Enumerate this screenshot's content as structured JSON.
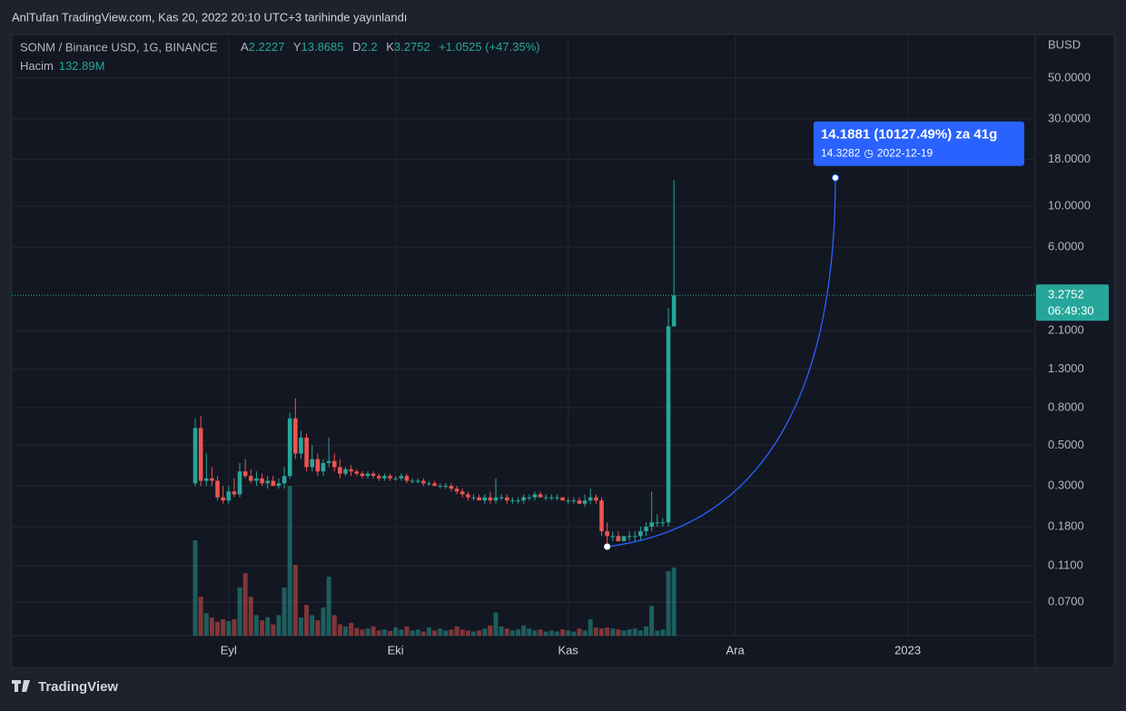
{
  "header": {
    "title": "AnlTufan TradingView.com, Kas 20, 2022 20:10 UTC+3 tarihinde yayınlandı"
  },
  "legend": {
    "symbol": "SONM / Binance USD, 1G, BINANCE",
    "open_label": "A",
    "high_label": "Y",
    "low_label": "D",
    "close_label": "K",
    "change": "+1.0525 (+47.35%)",
    "volume_label": "Hacim",
    "volume_value": "132.89M"
  },
  "chart_data": {
    "type": "candlestick",
    "categories": [
      null,
      null,
      null,
      null,
      null,
      null,
      null,
      null,
      null,
      null,
      null,
      null,
      null,
      null,
      null,
      null,
      null,
      null,
      null,
      null,
      null,
      null,
      null,
      null,
      null,
      null,
      null,
      null,
      null,
      null,
      null,
      null,
      null,
      null,
      null,
      null,
      null,
      null,
      null,
      null,
      null,
      null,
      null,
      null,
      null,
      null,
      null,
      null,
      null,
      null,
      null,
      null,
      null,
      null,
      null,
      null,
      null,
      null,
      null,
      null,
      null,
      null,
      null,
      null,
      null,
      null,
      null,
      null,
      null,
      null,
      null,
      null,
      null,
      null,
      null,
      null,
      null,
      null,
      null,
      null,
      null,
      null,
      null,
      null,
      null,
      null,
      null
    ],
    "open": [
      0.31,
      0.62,
      0.32,
      0.33,
      0.32,
      0.26,
      0.25,
      0.28,
      0.27,
      0.36,
      0.34,
      0.32,
      0.33,
      0.31,
      0.32,
      0.3,
      0.31,
      0.34,
      0.7,
      0.45,
      0.55,
      0.38,
      0.42,
      0.36,
      0.4,
      0.41,
      0.38,
      0.35,
      0.37,
      0.36,
      0.35,
      0.34,
      0.35,
      0.34,
      0.33,
      0.34,
      0.33,
      0.33,
      0.34,
      0.32,
      0.32,
      0.32,
      0.31,
      0.31,
      0.3,
      0.3,
      0.3,
      0.29,
      0.28,
      0.27,
      0.26,
      0.26,
      0.25,
      0.26,
      0.25,
      0.26,
      0.26,
      0.25,
      0.25,
      0.25,
      0.26,
      0.26,
      0.27,
      0.26,
      0.26,
      0.26,
      0.26,
      0.25,
      0.25,
      0.25,
      0.24,
      0.25,
      0.26,
      0.25,
      0.17,
      0.16,
      0.16,
      0.15,
      0.16,
      0.16,
      0.16,
      0.17,
      0.18,
      0.19,
      0.19,
      0.19,
      2.2227
    ],
    "high": [
      0.7,
      0.72,
      0.45,
      0.38,
      0.34,
      0.3,
      0.3,
      0.33,
      0.4,
      0.42,
      0.37,
      0.36,
      0.35,
      0.34,
      0.34,
      0.33,
      0.38,
      0.75,
      0.9,
      0.6,
      0.58,
      0.5,
      0.45,
      0.42,
      0.55,
      0.45,
      0.42,
      0.38,
      0.39,
      0.37,
      0.36,
      0.36,
      0.36,
      0.35,
      0.35,
      0.35,
      0.34,
      0.35,
      0.35,
      0.33,
      0.33,
      0.33,
      0.32,
      0.32,
      0.31,
      0.31,
      0.31,
      0.3,
      0.29,
      0.28,
      0.27,
      0.27,
      0.27,
      0.28,
      0.33,
      0.27,
      0.27,
      0.26,
      0.26,
      0.27,
      0.27,
      0.28,
      0.28,
      0.27,
      0.27,
      0.27,
      0.26,
      0.26,
      0.26,
      0.26,
      0.27,
      0.29,
      0.27,
      0.26,
      0.19,
      0.17,
      0.17,
      0.16,
      0.17,
      0.17,
      0.18,
      0.19,
      0.28,
      0.21,
      0.2,
      2.8,
      13.8685
    ],
    "low": [
      0.3,
      0.3,
      0.3,
      0.3,
      0.25,
      0.24,
      0.24,
      0.26,
      0.26,
      0.33,
      0.31,
      0.3,
      0.3,
      0.29,
      0.3,
      0.29,
      0.29,
      0.33,
      0.42,
      0.42,
      0.36,
      0.36,
      0.34,
      0.34,
      0.38,
      0.36,
      0.33,
      0.34,
      0.34,
      0.34,
      0.33,
      0.33,
      0.33,
      0.32,
      0.32,
      0.32,
      0.32,
      0.32,
      0.31,
      0.31,
      0.31,
      0.3,
      0.3,
      0.3,
      0.29,
      0.29,
      0.28,
      0.27,
      0.26,
      0.25,
      0.25,
      0.25,
      0.24,
      0.24,
      0.24,
      0.25,
      0.24,
      0.24,
      0.24,
      0.24,
      0.25,
      0.25,
      0.26,
      0.25,
      0.25,
      0.25,
      0.25,
      0.24,
      0.24,
      0.24,
      0.23,
      0.24,
      0.24,
      0.16,
      0.14,
      0.15,
      0.15,
      0.15,
      0.15,
      0.15,
      0.15,
      0.16,
      0.17,
      0.18,
      0.18,
      0.18,
      2.2
    ],
    "close": [
      0.62,
      0.32,
      0.33,
      0.32,
      0.26,
      0.25,
      0.28,
      0.27,
      0.36,
      0.34,
      0.32,
      0.33,
      0.31,
      0.32,
      0.3,
      0.31,
      0.34,
      0.7,
      0.45,
      0.55,
      0.38,
      0.42,
      0.36,
      0.4,
      0.41,
      0.38,
      0.35,
      0.37,
      0.36,
      0.35,
      0.34,
      0.35,
      0.34,
      0.33,
      0.34,
      0.33,
      0.33,
      0.34,
      0.32,
      0.32,
      0.32,
      0.31,
      0.31,
      0.3,
      0.3,
      0.3,
      0.29,
      0.28,
      0.27,
      0.26,
      0.26,
      0.25,
      0.26,
      0.25,
      0.26,
      0.26,
      0.25,
      0.25,
      0.25,
      0.26,
      0.26,
      0.27,
      0.26,
      0.26,
      0.26,
      0.26,
      0.25,
      0.25,
      0.25,
      0.24,
      0.25,
      0.26,
      0.25,
      0.17,
      0.16,
      0.16,
      0.15,
      0.16,
      0.16,
      0.16,
      0.17,
      0.18,
      0.19,
      0.19,
      0.19,
      2.2227,
      3.2752
    ],
    "volume": [
      186,
      76,
      44,
      35,
      27,
      32,
      28,
      32,
      94,
      122,
      76,
      40,
      30,
      36,
      22,
      40,
      94,
      292,
      138,
      35,
      60,
      40,
      30,
      55,
      115,
      40,
      22,
      18,
      25,
      15,
      12,
      14,
      18,
      10,
      12,
      9,
      16,
      12,
      18,
      10,
      12,
      8,
      16,
      10,
      14,
      10,
      12,
      18,
      12,
      10,
      8,
      10,
      14,
      20,
      45,
      18,
      14,
      10,
      12,
      20,
      14,
      10,
      12,
      8,
      10,
      8,
      12,
      10,
      8,
      14,
      10,
      32,
      16,
      14,
      16,
      14,
      12,
      10,
      12,
      14,
      10,
      18,
      58,
      10,
      12,
      126,
      132.89
    ],
    "up_color": "#26a69a",
    "down_color": "#ef5350",
    "log": true,
    "grid": true,
    "ylim": [
      0.0459,
      84.4
    ],
    "yticks": [
      {
        "value": 50,
        "label": "50.0000"
      },
      {
        "value": 30,
        "label": "30.0000"
      },
      {
        "value": 18,
        "label": "18.0000"
      },
      {
        "value": 10,
        "label": "10.0000"
      },
      {
        "value": 6,
        "label": "6.0000"
      },
      {
        "value": 2.1,
        "label": "2.1000"
      },
      {
        "value": 1.3,
        "label": "1.3000"
      },
      {
        "value": 0.8,
        "label": "0.8000"
      },
      {
        "value": 0.5,
        "label": "0.5000"
      },
      {
        "value": 0.3,
        "label": "0.3000"
      },
      {
        "value": 0.18,
        "label": "0.1800"
      },
      {
        "value": 0.11,
        "label": "0.1100"
      },
      {
        "value": 0.07,
        "label": "0.0700"
      }
    ],
    "y2lim": [
      0,
      1170
    ],
    "xticks": [
      {
        "value": 6,
        "label": "Eyl"
      },
      {
        "value": 36,
        "label": "Eki"
      },
      {
        "value": 67,
        "label": "Kas"
      },
      {
        "value": 97,
        "label": "Ara"
      },
      {
        "value": 128,
        "label": "2023"
      }
    ],
    "price_axis_label": "BUSD",
    "countdown": "06:49:30",
    "projection": {
      "label": "14.1881 (10127.49%) za 41g",
      "x": [
        74,
        115
      ],
      "values": [
        0.1401,
        14.3282
      ],
      "date": "2022-12-19",
      "color": "#2962ff"
    }
  },
  "footer": {
    "brand": "TradingView"
  }
}
